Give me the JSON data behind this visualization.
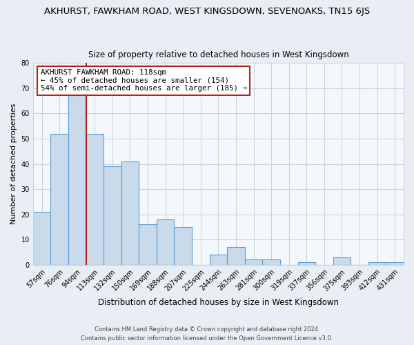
{
  "title": "AKHURST, FAWKHAM ROAD, WEST KINGSDOWN, SEVENOAKS, TN15 6JS",
  "subtitle": "Size of property relative to detached houses in West Kingsdown",
  "xlabel": "Distribution of detached houses by size in West Kingsdown",
  "ylabel": "Number of detached properties",
  "categories": [
    "57sqm",
    "76sqm",
    "94sqm",
    "113sqm",
    "132sqm",
    "150sqm",
    "169sqm",
    "188sqm",
    "207sqm",
    "225sqm",
    "244sqm",
    "263sqm",
    "281sqm",
    "300sqm",
    "319sqm",
    "337sqm",
    "356sqm",
    "375sqm",
    "393sqm",
    "412sqm",
    "431sqm"
  ],
  "values": [
    21,
    52,
    68,
    52,
    39,
    41,
    16,
    18,
    15,
    0,
    4,
    7,
    2,
    2,
    0,
    1,
    0,
    3,
    0,
    1,
    1
  ],
  "bar_color": "#c9daea",
  "bar_edge_color": "#5b9bd5",
  "marker_line_after_index": 2,
  "marker_label": "AKHURST FAWKHAM ROAD: 118sqm",
  "arrow_left_text": "← 45% of detached houses are smaller (154)",
  "arrow_right_text": "54% of semi-detached houses are larger (185) →",
  "marker_line_color": "#b22222",
  "ylim": [
    0,
    80
  ],
  "yticks": [
    0,
    10,
    20,
    30,
    40,
    50,
    60,
    70,
    80
  ],
  "footer_line1": "Contains HM Land Registry data © Crown copyright and database right 2024.",
  "footer_line2": "Contains public sector information licensed under the Open Government Licence v3.0.",
  "bg_color": "#e8eef4",
  "plot_bg_color": "#f5f8fb",
  "grid_color": "#c8d4e0"
}
